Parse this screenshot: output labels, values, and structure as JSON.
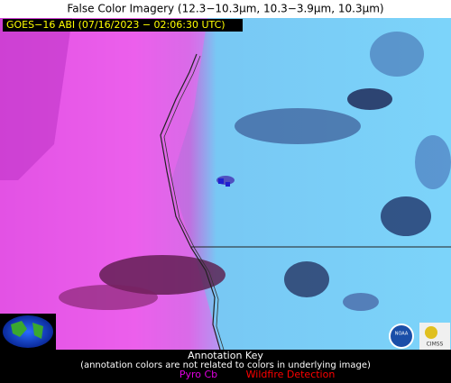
{
  "header": {
    "title": "False Color Imagery (12.3−10.3µm, 10.3−3.9µm, 10.3µm)"
  },
  "image": {
    "label": "GOES−16 ABI (07/16/2023 − 02:06:30 UTC)"
  },
  "legend": {
    "title": "Annotation Key",
    "note": "(annotation colors are not related to colors in underlying image)",
    "items": [
      {
        "label": "Pyro Cb",
        "color": "#e000e0"
      },
      {
        "label": "Wildfire Detection",
        "color": "#ff0000"
      }
    ]
  },
  "logos": [
    "NOAA",
    "CIMSS"
  ]
}
